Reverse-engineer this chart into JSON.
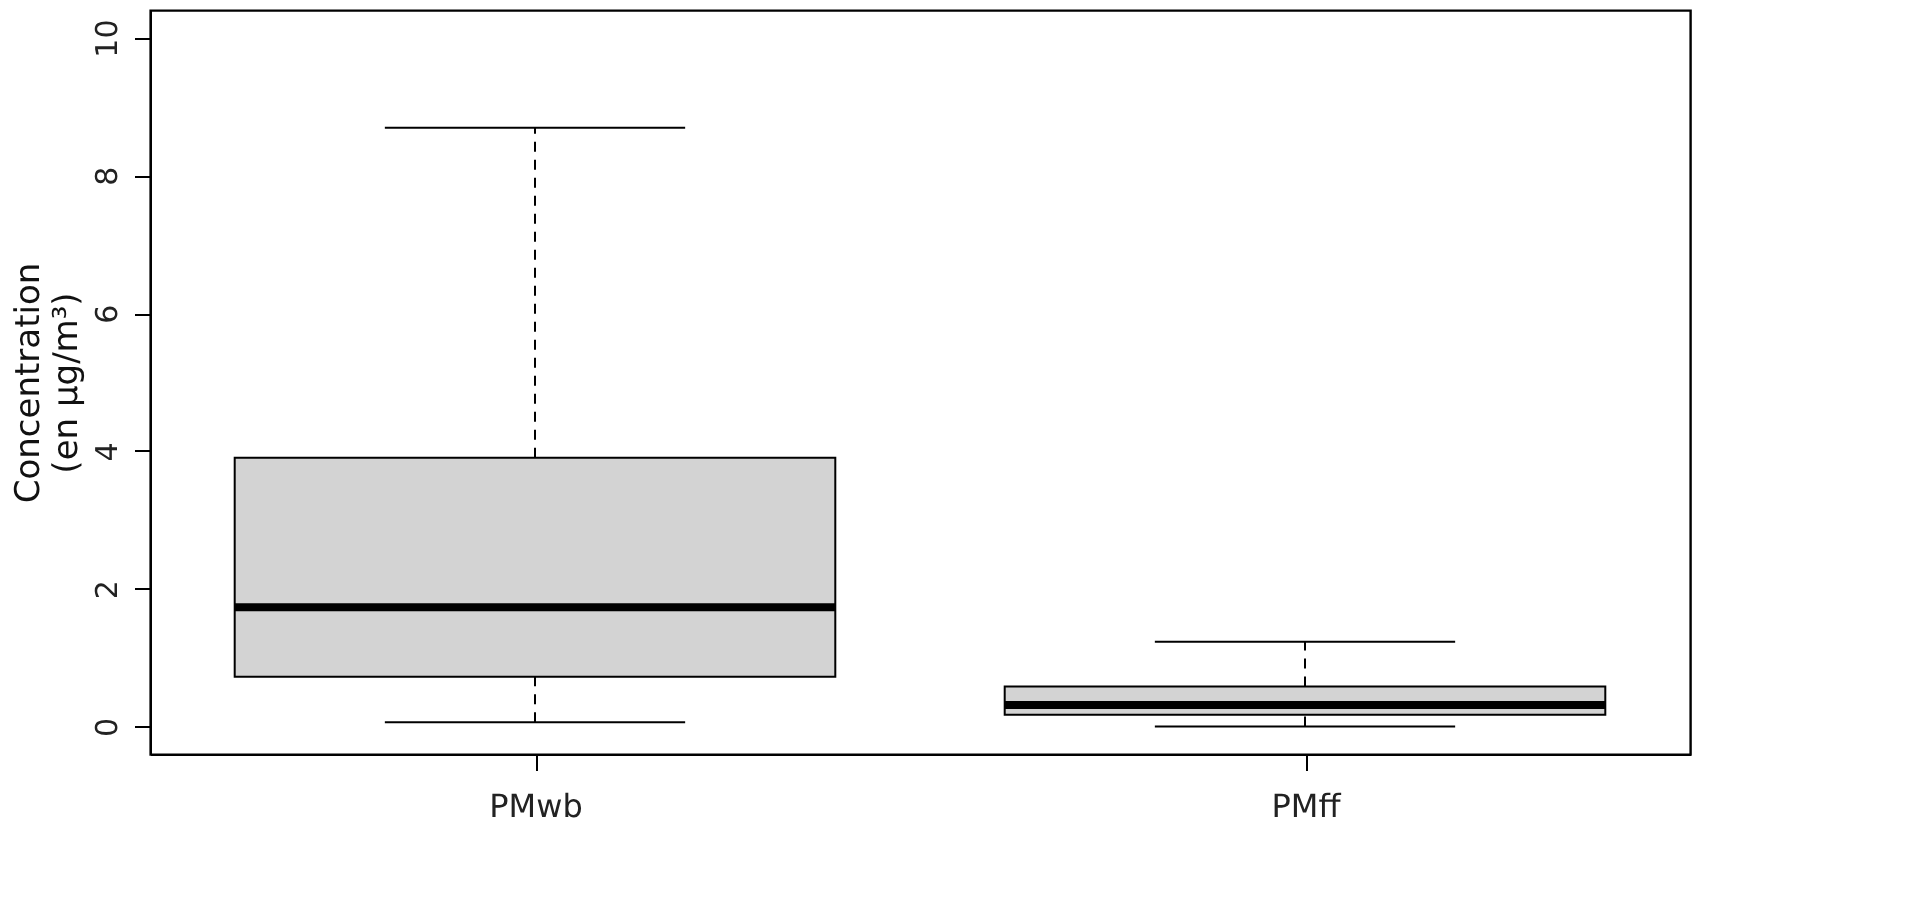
{
  "chart_data": {
    "type": "box",
    "ylabel": "Concentration\n(en µg/m³)",
    "categories": [
      "PMwb",
      "PMff"
    ],
    "boxes": [
      {
        "low": 0.06,
        "q1": 0.72,
        "median": 1.73,
        "q3": 3.9,
        "high": 8.69
      },
      {
        "low": 0.0,
        "q1": 0.17,
        "median": 0.31,
        "q3": 0.58,
        "high": 1.23
      }
    ],
    "color": "#d3d3d3",
    "ylim": [
      -0.4,
      10.4
    ],
    "yticks": [
      0,
      2,
      4,
      6,
      8,
      10
    ],
    "grid": false
  }
}
